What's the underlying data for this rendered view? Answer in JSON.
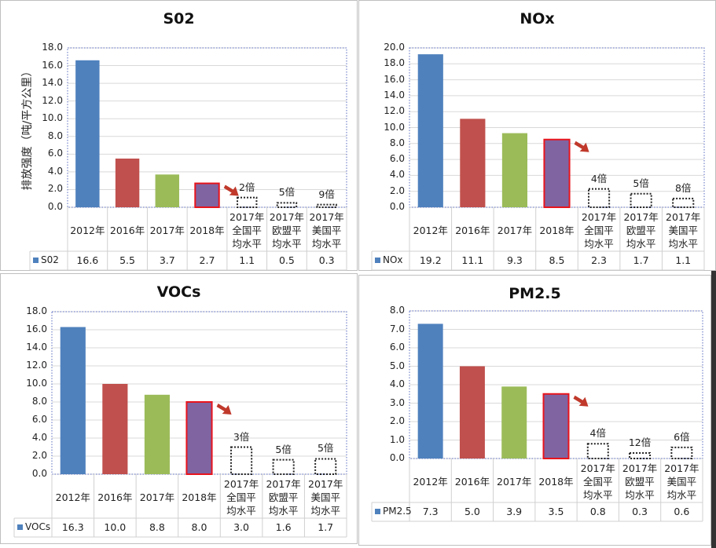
{
  "chart_data": [
    {
      "type": "bar",
      "title": "S02",
      "ylabel": "排放强度（吨/平方公里）",
      "series_name": "S02",
      "categories": [
        "2012年",
        "2016年",
        "2017年",
        "2018年",
        "2017年全国平均水平",
        "2017年欧盟平均水平",
        "2017年美国平均水平"
      ],
      "values": [
        16.6,
        5.5,
        3.7,
        2.7,
        1.1,
        0.5,
        0.3
      ],
      "value_labels": [
        "16.6",
        "5.5",
        "3.7",
        "2.7",
        "1.1",
        "0.5",
        "0.3"
      ],
      "multiples": [
        null,
        null,
        null,
        null,
        "2倍",
        "5倍",
        "9倍"
      ],
      "ylim": [
        0,
        18
      ],
      "yticks": [
        "0.0",
        "2.0",
        "4.0",
        "6.0",
        "8.0",
        "10.0",
        "12.0",
        "14.0",
        "16.0",
        "18.0"
      ],
      "grid": true
    },
    {
      "type": "bar",
      "title": "NOx",
      "series_name": "NOx",
      "categories": [
        "2012年",
        "2016年",
        "2017年",
        "2018年",
        "2017年全国平均水平",
        "2017年欧盟平均水平",
        "2017年美国平均水平"
      ],
      "values": [
        19.2,
        11.1,
        9.3,
        8.5,
        2.3,
        1.7,
        1.1
      ],
      "value_labels": [
        "19.2",
        "11.1",
        "9.3",
        "8.5",
        "2.3",
        "1.7",
        "1.1"
      ],
      "multiples": [
        null,
        null,
        null,
        null,
        "4倍",
        "5倍",
        "8倍"
      ],
      "ylim": [
        0,
        20
      ],
      "yticks": [
        "0.0",
        "2.0",
        "4.0",
        "6.0",
        "8.0",
        "10.0",
        "12.0",
        "14.0",
        "16.0",
        "18.0",
        "20.0"
      ],
      "grid": true
    },
    {
      "type": "bar",
      "title": "VOCs",
      "series_name": "VOCs",
      "categories": [
        "2012年",
        "2016年",
        "2017年",
        "2018年",
        "2017年全国平均水平",
        "2017年欧盟平均水平",
        "2017年美国平均水平"
      ],
      "values": [
        16.3,
        10.0,
        8.8,
        8.0,
        3.0,
        1.6,
        1.7
      ],
      "value_labels": [
        "16.3",
        "10.0",
        "8.8",
        "8.0",
        "3.0",
        "1.6",
        "1.7"
      ],
      "multiples": [
        null,
        null,
        null,
        null,
        "3倍",
        "5倍",
        "5倍"
      ],
      "ylim": [
        0,
        18
      ],
      "yticks": [
        "0.0",
        "2.0",
        "4.0",
        "6.0",
        "8.0",
        "10.0",
        "12.0",
        "14.0",
        "16.0",
        "18.0"
      ],
      "grid": true
    },
    {
      "type": "bar",
      "title": "PM2.5",
      "series_name": "PM2.5",
      "categories": [
        "2012年",
        "2016年",
        "2017年",
        "2018年",
        "2017年全国平均水平",
        "2017年欧盟平均水平",
        "2017年美国平均水平"
      ],
      "values": [
        7.3,
        5.0,
        3.9,
        3.5,
        0.8,
        0.3,
        0.6
      ],
      "value_labels": [
        "7.3",
        "5.0",
        "3.9",
        "3.5",
        "0.8",
        "0.3",
        "0.6"
      ],
      "multiples": [
        null,
        null,
        null,
        null,
        "4倍",
        "12倍",
        "6倍"
      ],
      "ylim": [
        0,
        8
      ],
      "yticks": [
        "0.0",
        "1.0",
        "2.0",
        "3.0",
        "4.0",
        "5.0",
        "6.0",
        "7.0",
        "8.0"
      ],
      "grid": true
    }
  ],
  "colors": {
    "bars": [
      "#4f81bd",
      "#c0504d",
      "#9bbb59",
      "#8064a2"
    ],
    "highlight_border": "#e8141c",
    "arrow": "#c0392b",
    "legend_marker": "#4f81bd",
    "plot_border": "#5a6bc0"
  }
}
